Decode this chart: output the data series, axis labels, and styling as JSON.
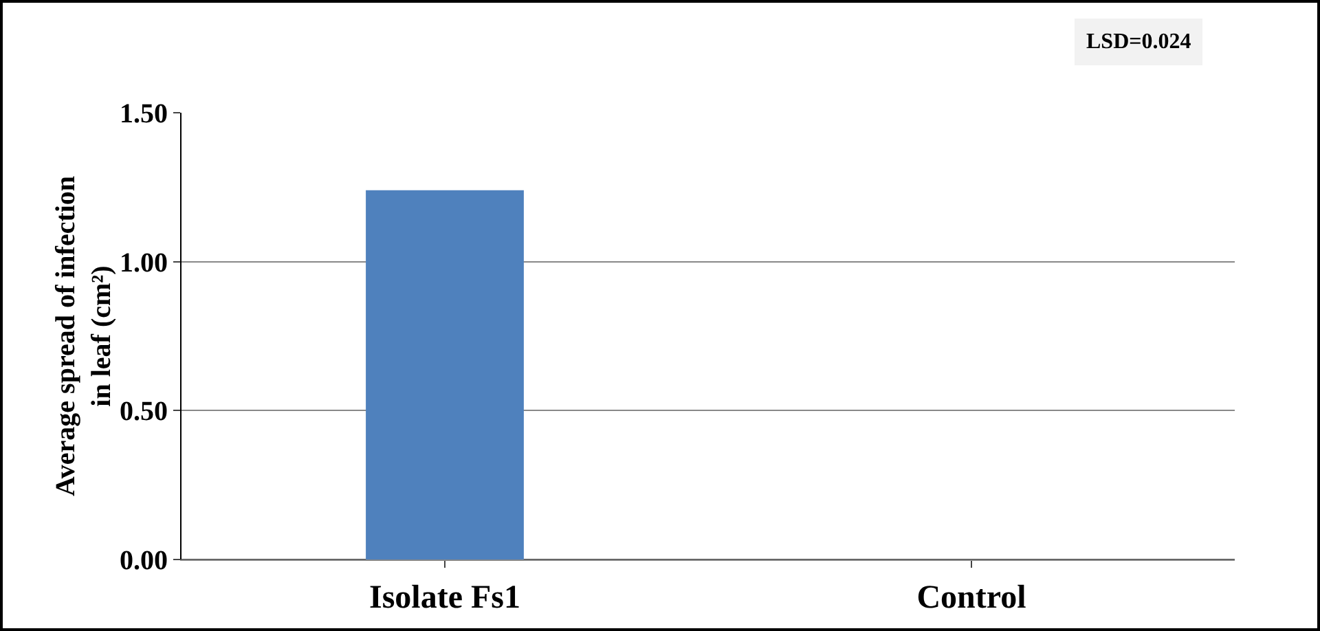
{
  "chart_data": {
    "type": "bar",
    "categories": [
      "Isolate Fs1",
      "Control"
    ],
    "values": [
      1.24,
      0.0
    ],
    "color": "#4f81bd",
    "ylabel": "Average spread of infection\nin leaf (cm²)",
    "ylim": [
      0,
      1.5
    ],
    "yticks": [
      {
        "value": 0,
        "label": "0.00"
      },
      {
        "value": 0.5,
        "label": "0.50"
      },
      {
        "value": 1,
        "label": "1.00"
      },
      {
        "value": 1.5,
        "label": "1.50"
      }
    ],
    "grid": "y",
    "legend": false,
    "annotations": [
      "LSD=0.024"
    ]
  }
}
